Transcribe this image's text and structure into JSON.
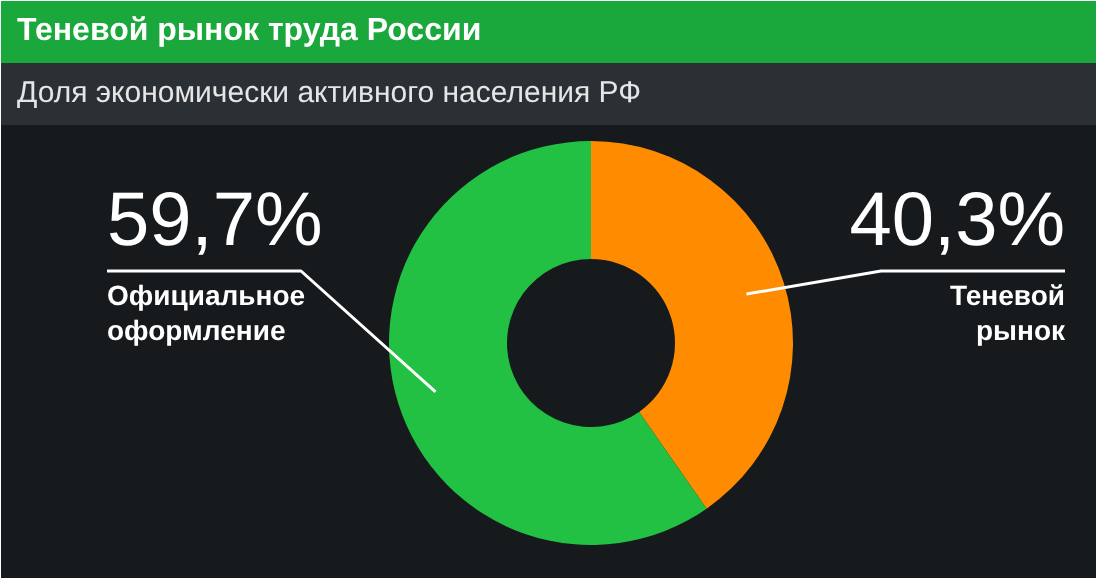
{
  "chart_data": {
    "type": "donut",
    "title": "Теневой рынок труда России",
    "subtitle": "Доля экономически активного населения РФ",
    "categories": [
      "Теневой рынок",
      "Официальное оформление"
    ],
    "values": [
      40.3,
      59.7
    ],
    "value_labels": [
      "40,3%",
      "59,7%"
    ],
    "colors": [
      "#ff8c00",
      "#22c043"
    ]
  }
}
